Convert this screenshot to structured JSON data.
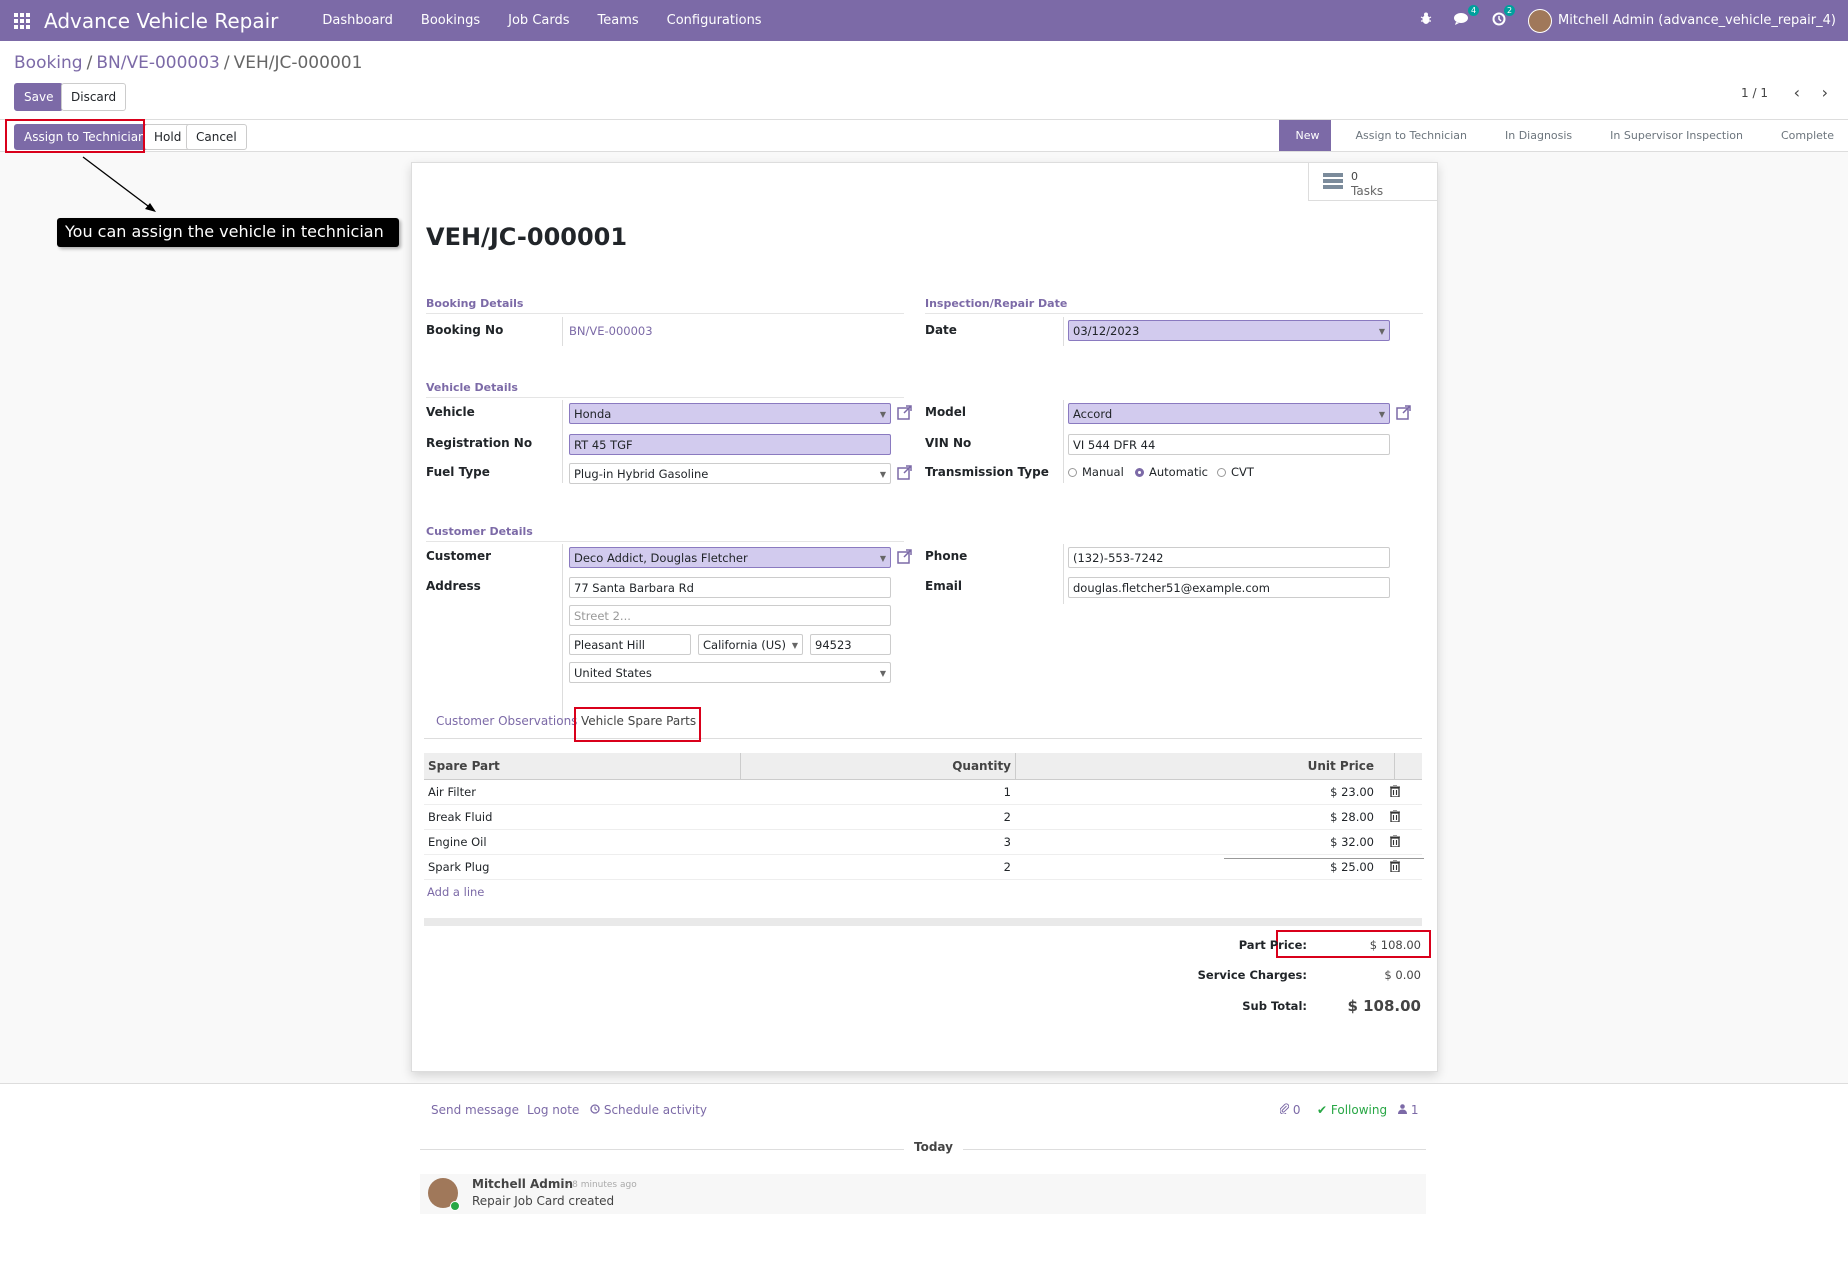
{
  "navbar": {
    "app_title": "Advance Vehicle Repair",
    "menu": [
      "Dashboard",
      "Bookings",
      "Job Cards",
      "Teams",
      "Configurations"
    ],
    "chat_count": "4",
    "activity_count": "2",
    "user": "Mitchell Admin (advance_vehicle_repair_4)"
  },
  "breadcrumb": {
    "root": "Booking",
    "parent": "BN/VE-000003",
    "current": "VEH/JC-000001",
    "separator": "/"
  },
  "actions": {
    "save": "Save",
    "discard": "Discard"
  },
  "pager": {
    "value": "1 / 1",
    "prev": "‹",
    "next": "›"
  },
  "status_buttons": {
    "assign": "Assign to Technician",
    "hold": "Hold",
    "cancel": "Cancel"
  },
  "stages": [
    "New",
    "Assign to Technician",
    "In Diagnosis",
    "In Supervisor Inspection",
    "Complete"
  ],
  "active_stage": "New",
  "annotation": "You can assign the vehicle in technician",
  "smart_button": {
    "count": "0",
    "label": "Tasks"
  },
  "record": {
    "title": "VEH/JC-000001",
    "sections": {
      "booking": "Booking Details",
      "inspection": "Inspection/Repair Date",
      "vehicle": "Vehicle Details",
      "customer": "Customer Details"
    },
    "labels": {
      "booking_no": "Booking No",
      "date": "Date",
      "vehicle": "Vehicle",
      "model": "Model",
      "registration": "Registration No",
      "vin": "VIN No",
      "fuel": "Fuel Type",
      "transmission": "Transmission Type",
      "customer": "Customer",
      "phone": "Phone",
      "address": "Address",
      "email": "Email"
    },
    "values": {
      "booking_no": "BN/VE-000003",
      "date": "03/12/2023",
      "vehicle": "Honda",
      "model": "Accord",
      "registration": "RT 45 TGF",
      "vin": "VI 544 DFR 44",
      "fuel": "Plug-in Hybrid Gasoline",
      "customer": "Deco Addict, Douglas Fletcher",
      "phone": "(132)-553-7242",
      "email": "douglas.fletcher51@example.com",
      "street": "77 Santa Barbara Rd",
      "street2_placeholder": "Street 2...",
      "city": "Pleasant Hill",
      "state": "California (US)",
      "zip": "94523",
      "country": "United States"
    },
    "transmission_options": [
      "Manual",
      "Automatic",
      "CVT"
    ],
    "transmission_selected": "Automatic"
  },
  "tabs": [
    "Customer Observations",
    "Vehicle Spare Parts"
  ],
  "active_tab": "Vehicle Spare Parts",
  "parts_table": {
    "columns": [
      "Spare Part",
      "Quantity",
      "Unit Price"
    ],
    "rows": [
      {
        "part": "Air Filter",
        "qty": "1",
        "price": "$ 23.00"
      },
      {
        "part": "Break Fluid",
        "qty": "2",
        "price": "$ 28.00"
      },
      {
        "part": "Engine Oil",
        "qty": "3",
        "price": "$ 32.00"
      },
      {
        "part": "Spark Plug",
        "qty": "2",
        "price": "$ 25.00"
      }
    ],
    "add_line": "Add a line"
  },
  "totals": {
    "part_price_label": "Part Price:",
    "part_price": "$ 108.00",
    "service_label": "Service Charges:",
    "service": "$ 0.00",
    "subtotal_label": "Sub Total:",
    "subtotal": "$ 108.00"
  },
  "chatter": {
    "send_message": "Send message",
    "log_note": "Log note",
    "schedule": "Schedule activity",
    "attachments": "0",
    "following": "Following",
    "followers": "1",
    "today": "Today",
    "author": "Mitchell Admin",
    "time": "- 8 minutes ago",
    "body": "Repair Job Card created"
  },
  "colors": {
    "brand": "#7c6aa7",
    "highlight": "#d9001b",
    "required_bg": "#d2cbee"
  }
}
